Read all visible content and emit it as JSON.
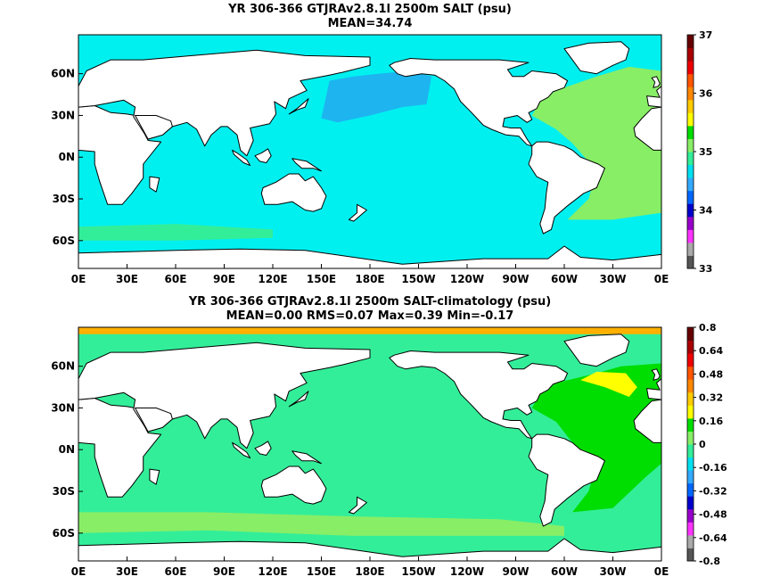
{
  "panels": [
    {
      "title_line1": "YR 306-366 GTJRAv2.8.1l 2500m SALT (psu)",
      "title_line2": "MEAN=34.74",
      "colorbar": {
        "labels": [
          "33",
          "34",
          "35",
          "36",
          "37"
        ],
        "colors": [
          "#555555",
          "#aaaaaa",
          "#ff33ff",
          "#9900cc",
          "#0000cc",
          "#0066ff",
          "#33aaff",
          "#00e0f0",
          "#33ee99",
          "#88ee66",
          "#00dd00",
          "#ffff00",
          "#ffcc00",
          "#ff8800",
          "#ff5500",
          "#ee0000",
          "#aa0000",
          "#660000"
        ]
      }
    },
    {
      "title_line1": "YR 306-366 GTJRAv2.8.1l 2500m SALT-climatology (psu)",
      "title_line2": "MEAN=0.00   RMS=0.07   Max=0.39   Min=-0.17",
      "colorbar": {
        "labels": [
          "-0.8",
          "-0.64",
          "-0.48",
          "-0.32",
          "-0.16",
          "0",
          "0.16",
          "0.32",
          "0.48",
          "0.64",
          "0.8"
        ],
        "colors": [
          "#555555",
          "#aaaaaa",
          "#ff33ff",
          "#9900cc",
          "#0000cc",
          "#0066ff",
          "#33aaff",
          "#00e0f0",
          "#33ee99",
          "#88ee66",
          "#00dd00",
          "#ffff00",
          "#ffcc00",
          "#ff8800",
          "#ff5500",
          "#ee0000",
          "#aa0000",
          "#660000"
        ]
      }
    }
  ],
  "axes": {
    "x_ticks": [
      "0E",
      "30E",
      "60E",
      "90E",
      "120E",
      "150E",
      "180E",
      "150W",
      "120W",
      "90W",
      "60W",
      "30W",
      "0E"
    ],
    "y_ticks": [
      "60N",
      "30N",
      "0N",
      "30S",
      "60S"
    ]
  },
  "colors": {
    "ocean_panel1": "#00f0f0",
    "ne_pacific_panel1": "#1eb4f0",
    "atlantic_panel1": "#88ee66",
    "southern_panel1": "#33ee99",
    "ocean_panel2": "#33ee99",
    "atlantic_panel2": "#00dd00",
    "north_atlantic_panel2": "#ffff00",
    "arctic_panel2": "#ffb000",
    "southern_panel2": "#88ee66",
    "land": "#ffffff",
    "coast": "#000000"
  }
}
